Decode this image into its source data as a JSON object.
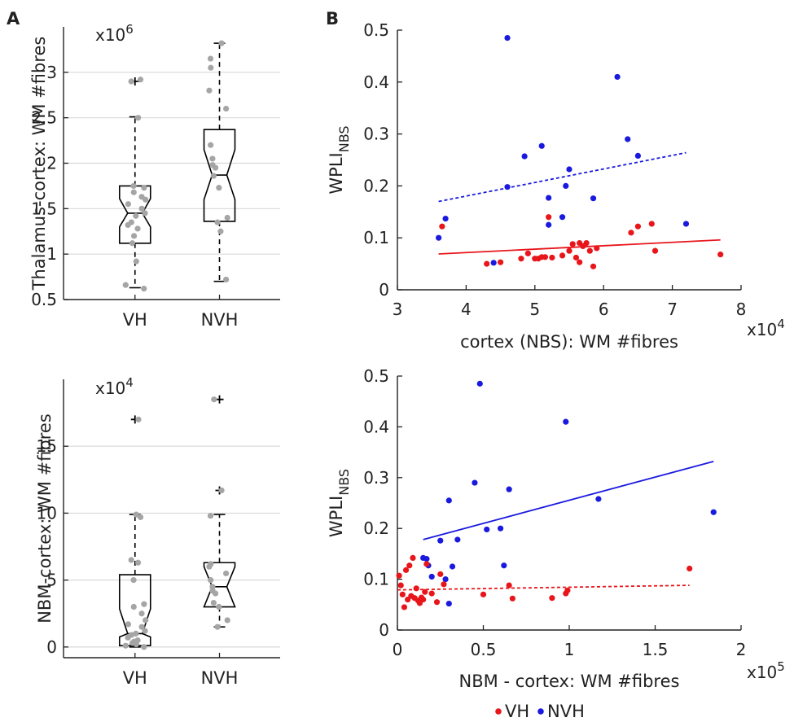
{
  "panel_labels": [
    "A",
    "B"
  ],
  "colors": {
    "VH": "#e8161b",
    "NVH": "#1a1adf",
    "gray_points": "#a5a5a5",
    "gridline": "#d9d9d9",
    "axis": "#222222"
  },
  "legend": {
    "items": [
      {
        "label": "VH",
        "color": "#e8161b"
      },
      {
        "label": "NVH",
        "color": "#1a1adf"
      }
    ]
  },
  "chart_data": [
    {
      "id": "A-top",
      "type": "box",
      "panel": "A",
      "ylabel": "Thalamus-cortex: WM #fibres",
      "multiplier_label": "x10",
      "multiplier_exp": "6",
      "categories": [
        "VH",
        "NVH"
      ],
      "ylim": [
        0.5,
        3.5
      ],
      "yticks": [
        0.5,
        1,
        1.5,
        2,
        2.5,
        3
      ],
      "ytick_labels": [
        "0.5",
        "1",
        "1.5",
        "2",
        "2.5",
        "3"
      ],
      "grid": true,
      "boxes": [
        {
          "category": "VH",
          "whisker_low": 0.63,
          "q1": 1.12,
          "median": 1.45,
          "q3": 1.75,
          "whisker_high": 2.51,
          "notch_low": 1.3,
          "notch_high": 1.61,
          "outliers": [
            2.9
          ]
        },
        {
          "category": "NVH",
          "whisker_low": 0.7,
          "q1": 1.36,
          "median": 1.87,
          "q3": 2.37,
          "whisker_high": 3.32,
          "notch_low": 1.6,
          "notch_high": 2.15,
          "outliers": []
        }
      ],
      "points": [
        {
          "category": "VH",
          "values": [
            0.62,
            0.66,
            0.92,
            1.12,
            1.2,
            1.28,
            1.32,
            1.35,
            1.42,
            1.45,
            1.5,
            1.55,
            1.6,
            1.63,
            1.68,
            1.73,
            1.75,
            2.5,
            2.9,
            2.92
          ]
        },
        {
          "category": "NVH",
          "values": [
            0.72,
            1.25,
            1.35,
            1.4,
            1.73,
            1.86,
            1.95,
            1.98,
            2.05,
            2.2,
            2.6,
            2.8,
            3.05,
            3.15,
            3.32
          ]
        }
      ]
    },
    {
      "id": "A-bottom",
      "type": "box",
      "panel": "A",
      "ylabel": "NBM-cortex: WM #fibres",
      "multiplier_label": "x10",
      "multiplier_exp": "4",
      "categories": [
        "VH",
        "NVH"
      ],
      "ylim": [
        -0.8,
        20
      ],
      "yticks": [
        0,
        5,
        10,
        15
      ],
      "ytick_labels": [
        "0",
        "5",
        "10",
        "15"
      ],
      "grid": true,
      "boxes": [
        {
          "category": "VH",
          "whisker_low": 0,
          "q1": 0.1,
          "median": 1.0,
          "q3": 5.4,
          "whisker_high": 9.9,
          "notch_low": 0.75,
          "notch_high": 2.85,
          "outliers": [
            17
          ]
        },
        {
          "category": "NVH",
          "whisker_low": 1.5,
          "q1": 3.0,
          "median": 4.5,
          "q3": 6.3,
          "whisker_high": 9.9,
          "notch_low": 3.0,
          "notch_high": 6.0,
          "outliers": [
            11.7,
            18.5
          ]
        }
      ],
      "points": [
        {
          "category": "VH",
          "values": [
            0.0,
            0.1,
            0.2,
            0.3,
            0.4,
            0.5,
            0.7,
            0.9,
            1.0,
            1.2,
            1.5,
            1.7,
            2.0,
            2.5,
            3.0,
            3.2,
            5.0,
            6.3,
            6.5,
            9.7,
            9.9,
            17.0
          ]
        },
        {
          "category": "NVH",
          "values": [
            1.5,
            2.0,
            3.0,
            3.3,
            4.0,
            4.2,
            4.5,
            5.0,
            5.5,
            6.0,
            6.2,
            9.8,
            11.7,
            18.5
          ]
        }
      ]
    },
    {
      "id": "B-top",
      "type": "scatter",
      "panel": "B",
      "xlabel": "cortex (NBS): WM #fibres",
      "ylabel": "WPLI",
      "ylabel_sub": "NBS",
      "multiplier_label": "x10",
      "multiplier_exp": "4",
      "xlim": [
        3,
        8
      ],
      "ylim": [
        0,
        0.5
      ],
      "xticks": [
        3,
        4,
        5,
        6,
        7,
        8
      ],
      "xtick_labels": [
        "3",
        "4",
        "5",
        "6",
        "7",
        "8"
      ],
      "yticks": [
        0,
        0.1,
        0.2,
        0.3,
        0.4,
        0.5
      ],
      "ytick_labels": [
        "0",
        "0.1",
        "0.2",
        "0.3",
        "0.4",
        "0.5"
      ],
      "series": [
        {
          "name": "NVH",
          "color": "#1a1adf",
          "points": [
            [
              3.6,
              0.1
            ],
            [
              3.7,
              0.137
            ],
            [
              4.4,
              0.052
            ],
            [
              4.6,
              0.485
            ],
            [
              4.6,
              0.198
            ],
            [
              4.85,
              0.257
            ],
            [
              5.1,
              0.277
            ],
            [
              5.2,
              0.177
            ],
            [
              5.2,
              0.125
            ],
            [
              5.4,
              0.14
            ],
            [
              5.45,
              0.2
            ],
            [
              5.5,
              0.232
            ],
            [
              5.85,
              0.176
            ],
            [
              6.2,
              0.41
            ],
            [
              6.35,
              0.29
            ],
            [
              6.5,
              0.258
            ],
            [
              7.2,
              0.127
            ]
          ],
          "fit": {
            "x": [
              3.6,
              7.2
            ],
            "y": [
              0.17,
              0.264
            ],
            "style": "dashed"
          }
        },
        {
          "name": "VH",
          "color": "#e8161b",
          "points": [
            [
              3.65,
              0.122
            ],
            [
              4.3,
              0.05
            ],
            [
              4.5,
              0.053
            ],
            [
              4.8,
              0.06
            ],
            [
              4.9,
              0.07
            ],
            [
              5.0,
              0.06
            ],
            [
              5.05,
              0.06
            ],
            [
              5.1,
              0.063
            ],
            [
              5.15,
              0.063
            ],
            [
              5.2,
              0.14
            ],
            [
              5.25,
              0.062
            ],
            [
              5.4,
              0.066
            ],
            [
              5.5,
              0.075
            ],
            [
              5.55,
              0.088
            ],
            [
              5.6,
              0.062
            ],
            [
              5.65,
              0.053
            ],
            [
              5.65,
              0.09
            ],
            [
              5.7,
              0.084
            ],
            [
              5.75,
              0.09
            ],
            [
              5.8,
              0.075
            ],
            [
              5.85,
              0.045
            ],
            [
              5.9,
              0.08
            ],
            [
              6.4,
              0.11
            ],
            [
              6.5,
              0.122
            ],
            [
              6.7,
              0.127
            ],
            [
              6.75,
              0.075
            ],
            [
              7.7,
              0.068
            ]
          ],
          "fit": {
            "x": [
              3.6,
              7.7
            ],
            "y": [
              0.069,
              0.096
            ],
            "style": "solid"
          }
        }
      ]
    },
    {
      "id": "B-bottom",
      "type": "scatter",
      "panel": "B",
      "xlabel": "NBM - cortex: WM #fibres",
      "ylabel": "WPLI",
      "ylabel_sub": "NBS",
      "multiplier_label": "x10",
      "multiplier_exp": "5",
      "xlim": [
        0,
        2
      ],
      "ylim": [
        0,
        0.5
      ],
      "xticks": [
        0,
        0.5,
        1,
        1.5,
        2
      ],
      "xtick_labels": [
        "0",
        "0.5",
        "1",
        "1.5",
        "2"
      ],
      "yticks": [
        0,
        0.1,
        0.2,
        0.3,
        0.4,
        0.5
      ],
      "ytick_labels": [
        "0",
        "0.1",
        "0.2",
        "0.3",
        "0.4",
        "0.5"
      ],
      "series": [
        {
          "name": "NVH",
          "color": "#1a1adf",
          "points": [
            [
              0.15,
              0.142
            ],
            [
              0.17,
              0.14
            ],
            [
              0.18,
              0.127
            ],
            [
              0.2,
              0.105
            ],
            [
              0.25,
              0.176
            ],
            [
              0.28,
              0.1
            ],
            [
              0.3,
              0.255
            ],
            [
              0.3,
              0.052
            ],
            [
              0.32,
              0.125
            ],
            [
              0.35,
              0.178
            ],
            [
              0.45,
              0.29
            ],
            [
              0.48,
              0.485
            ],
            [
              0.52,
              0.198
            ],
            [
              0.6,
              0.2
            ],
            [
              0.62,
              0.127
            ],
            [
              0.65,
              0.277
            ],
            [
              0.98,
              0.41
            ],
            [
              1.17,
              0.258
            ],
            [
              1.84,
              0.232
            ]
          ],
          "fit": {
            "x": [
              0.15,
              1.84
            ],
            "y": [
              0.178,
              0.332
            ],
            "style": "solid"
          }
        },
        {
          "name": "VH",
          "color": "#e8161b",
          "points": [
            [
              0.01,
              0.107
            ],
            [
              0.02,
              0.088
            ],
            [
              0.03,
              0.07
            ],
            [
              0.04,
              0.045
            ],
            [
              0.05,
              0.118
            ],
            [
              0.06,
              0.06
            ],
            [
              0.07,
              0.127
            ],
            [
              0.08,
              0.067
            ],
            [
              0.09,
              0.142
            ],
            [
              0.1,
              0.063
            ],
            [
              0.11,
              0.082
            ],
            [
              0.12,
              0.058
            ],
            [
              0.13,
              0.053
            ],
            [
              0.14,
              0.064
            ],
            [
              0.15,
              0.06
            ],
            [
              0.16,
              0.075
            ],
            [
              0.17,
              0.13
            ],
            [
              0.2,
              0.072
            ],
            [
              0.23,
              0.055
            ],
            [
              0.25,
              0.11
            ],
            [
              0.27,
              0.09
            ],
            [
              0.5,
              0.07
            ],
            [
              0.65,
              0.088
            ],
            [
              0.67,
              0.062
            ],
            [
              0.9,
              0.063
            ],
            [
              0.98,
              0.072
            ],
            [
              0.99,
              0.078
            ],
            [
              1.7,
              0.121
            ]
          ],
          "fit": {
            "x": [
              0.0,
              1.7
            ],
            "y": [
              0.079,
              0.088
            ],
            "style": "dashed"
          }
        }
      ]
    }
  ]
}
